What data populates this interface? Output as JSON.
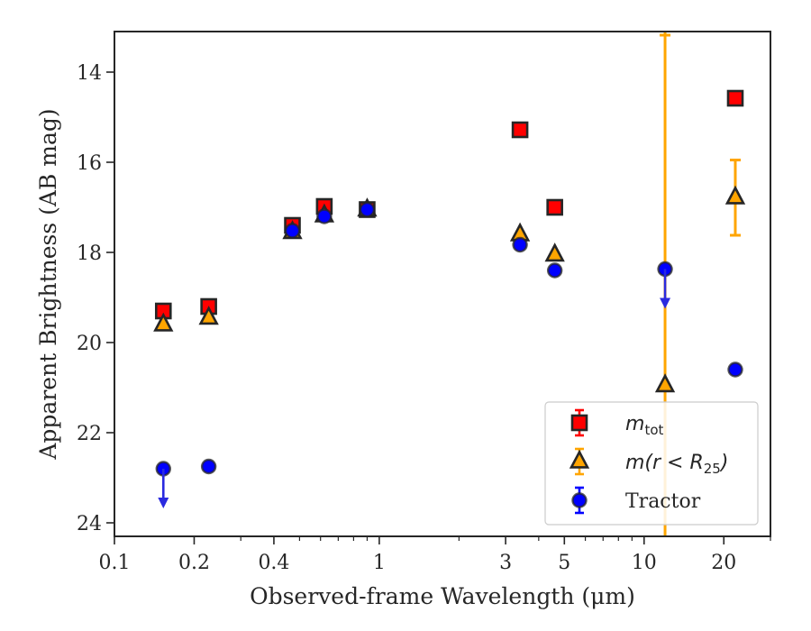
{
  "chart_data": {
    "type": "scatter",
    "xlabel": "Observed-frame Wavelength (μm)",
    "ylabel": "Apparent Brightness (AB mag)",
    "xscale": "log",
    "xlim": [
      0.1,
      30
    ],
    "ylim": [
      24.3,
      13.1
    ],
    "y_inverted": true,
    "x_ticks": [
      0.1,
      0.2,
      0.4,
      1,
      3,
      5,
      10,
      20
    ],
    "x_tick_labels": [
      "0.1",
      "0.2",
      "0.4",
      "1",
      "3",
      "5",
      "10",
      "20"
    ],
    "y_ticks": [
      14,
      16,
      18,
      20,
      22,
      24
    ],
    "y_tick_labels": [
      "14",
      "16",
      "18",
      "20",
      "22",
      "24"
    ],
    "legend_position": "lower-right",
    "series": [
      {
        "name": "m_tot",
        "legend_label": {
          "main": "m",
          "sub": "tot"
        },
        "marker": "square",
        "color": "#ff0000",
        "edge_color": "#262626",
        "points": [
          {
            "x": 0.153,
            "y": 19.3
          },
          {
            "x": 0.227,
            "y": 19.2
          },
          {
            "x": 0.47,
            "y": 17.4
          },
          {
            "x": 0.62,
            "y": 16.98
          },
          {
            "x": 0.9,
            "y": 17.05
          },
          {
            "x": 3.4,
            "y": 15.28
          },
          {
            "x": 4.6,
            "y": 17.0
          },
          {
            "x": 22.1,
            "y": 14.58
          }
        ]
      },
      {
        "name": "m(r<R25)",
        "legend_label": {
          "main": "m(r < R",
          "sub": "25",
          "tail": ")"
        },
        "marker": "triangle",
        "color": "#ffa500",
        "edge_color": "#262626",
        "points": [
          {
            "x": 0.153,
            "y": 19.6
          },
          {
            "x": 0.227,
            "y": 19.45
          },
          {
            "x": 0.47,
            "y": 17.55
          },
          {
            "x": 0.62,
            "y": 17.18
          },
          {
            "x": 0.9,
            "y": 17.05
          },
          {
            "x": 3.4,
            "y": 17.6
          },
          {
            "x": 4.6,
            "y": 18.05
          },
          {
            "x": 12.0,
            "y": 20.95,
            "yerr_low": 13.1,
            "yerr_high": 24.3
          },
          {
            "x": 22.1,
            "y": 16.78,
            "yerr_low": 15.95,
            "yerr_high": 17.62
          }
        ]
      },
      {
        "name": "Tractor",
        "legend_label": {
          "main": "Tractor"
        },
        "marker": "circle",
        "color": "#0000ff",
        "edge_color": "#262626",
        "points": [
          {
            "x": 0.153,
            "y": 22.8,
            "upper_limit": true
          },
          {
            "x": 0.227,
            "y": 22.75
          },
          {
            "x": 0.47,
            "y": 17.52
          },
          {
            "x": 0.62,
            "y": 17.2
          },
          {
            "x": 0.9,
            "y": 17.05
          },
          {
            "x": 3.4,
            "y": 17.83
          },
          {
            "x": 4.6,
            "y": 18.4
          },
          {
            "x": 12.0,
            "y": 18.37,
            "upper_limit": true
          },
          {
            "x": 22.1,
            "y": 20.6
          }
        ]
      }
    ]
  }
}
